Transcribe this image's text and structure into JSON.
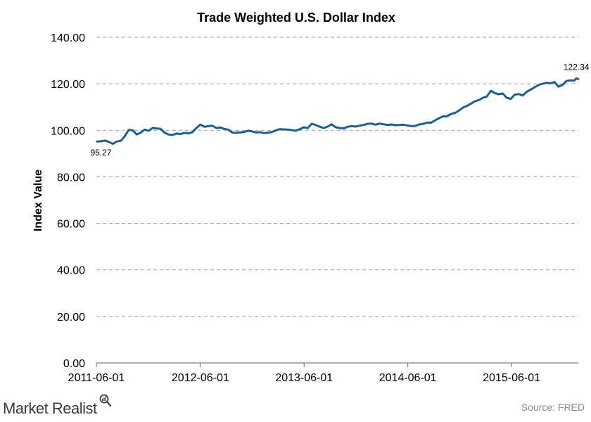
{
  "chart_data": {
    "type": "line",
    "title": "Trade Weighted  U.S. Dollar  Index",
    "ylabel": "Index Value",
    "xlabel": "",
    "ylim": [
      0,
      140
    ],
    "yticks": [
      "0.00",
      "20.00",
      "40.00",
      "60.00",
      "80.00",
      "100.00",
      "120.00",
      "140.00"
    ],
    "xticks": [
      "2011-06-01",
      "2012-06-01",
      "2013-06-01",
      "2014-06-01",
      "2015-06-01"
    ],
    "grid": "horizontal dashed",
    "color": "#1f5f8b",
    "x_start": "2011-06-01",
    "x_end": "2016-01-22",
    "annotations": [
      {
        "date": "2011-06-17",
        "value": 95.27,
        "label": "95.27",
        "position": "below"
      },
      {
        "date": "2016-01-15",
        "value": 122.34,
        "label": "122.34",
        "position": "above"
      }
    ],
    "series": [
      {
        "points": [
          [
            "2011-06-03",
            95.2
          ],
          [
            "2011-06-17",
            95.27
          ],
          [
            "2011-07-01",
            95.6
          ],
          [
            "2011-07-15",
            95.0
          ],
          [
            "2011-07-29",
            94.2
          ],
          [
            "2011-08-12",
            95.2
          ],
          [
            "2011-08-26",
            95.5
          ],
          [
            "2011-09-09",
            97.5
          ],
          [
            "2011-09-23",
            100.2
          ],
          [
            "2011-10-07",
            100.0
          ],
          [
            "2011-10-21",
            98.2
          ],
          [
            "2011-11-04",
            99.0
          ],
          [
            "2011-11-18",
            100.3
          ],
          [
            "2011-12-02",
            99.8
          ],
          [
            "2011-12-16",
            101.0
          ],
          [
            "2011-12-30",
            100.8
          ],
          [
            "2012-01-13",
            100.6
          ],
          [
            "2012-01-27",
            99.0
          ],
          [
            "2012-02-10",
            98.2
          ],
          [
            "2012-02-24",
            98.0
          ],
          [
            "2012-03-09",
            98.6
          ],
          [
            "2012-03-23",
            98.4
          ],
          [
            "2012-04-06",
            98.9
          ],
          [
            "2012-04-20",
            98.7
          ],
          [
            "2012-05-04",
            99.2
          ],
          [
            "2012-05-18",
            101.0
          ],
          [
            "2012-06-01",
            102.5
          ],
          [
            "2012-06-15",
            101.5
          ],
          [
            "2012-06-29",
            101.8
          ],
          [
            "2012-07-13",
            102.0
          ],
          [
            "2012-07-27",
            101.0
          ],
          [
            "2012-08-10",
            101.2
          ],
          [
            "2012-08-24",
            100.6
          ],
          [
            "2012-09-07",
            100.3
          ],
          [
            "2012-09-21",
            99.0
          ],
          [
            "2012-10-05",
            99.0
          ],
          [
            "2012-10-19",
            99.1
          ],
          [
            "2012-11-02",
            99.3
          ],
          [
            "2012-11-16",
            99.8
          ],
          [
            "2012-11-30",
            99.5
          ],
          [
            "2012-12-14",
            99.1
          ],
          [
            "2012-12-28",
            99.2
          ],
          [
            "2013-01-11",
            98.8
          ],
          [
            "2013-01-25",
            99.0
          ],
          [
            "2013-02-08",
            99.3
          ],
          [
            "2013-02-22",
            100.0
          ],
          [
            "2013-03-08",
            100.5
          ],
          [
            "2013-03-22",
            100.4
          ],
          [
            "2013-04-05",
            100.3
          ],
          [
            "2013-04-19",
            100.1
          ],
          [
            "2013-05-03",
            99.8
          ],
          [
            "2013-05-17",
            100.5
          ],
          [
            "2013-05-31",
            101.3
          ],
          [
            "2013-06-14",
            101.0
          ],
          [
            "2013-06-28",
            102.8
          ],
          [
            "2013-07-12",
            102.3
          ],
          [
            "2013-07-26",
            101.5
          ],
          [
            "2013-08-09",
            101.0
          ],
          [
            "2013-08-23",
            101.6
          ],
          [
            "2013-09-06",
            102.6
          ],
          [
            "2013-09-20",
            101.3
          ],
          [
            "2013-10-04",
            101.0
          ],
          [
            "2013-10-18",
            100.8
          ],
          [
            "2013-11-01",
            101.5
          ],
          [
            "2013-11-15",
            101.8
          ],
          [
            "2013-11-29",
            101.6
          ],
          [
            "2013-12-13",
            102.0
          ],
          [
            "2013-12-27",
            102.3
          ],
          [
            "2014-01-10",
            102.8
          ],
          [
            "2014-01-24",
            102.9
          ],
          [
            "2014-02-07",
            102.4
          ],
          [
            "2014-02-21",
            102.9
          ],
          [
            "2014-03-07",
            102.6
          ],
          [
            "2014-03-21",
            102.3
          ],
          [
            "2014-04-04",
            102.5
          ],
          [
            "2014-04-18",
            102.2
          ],
          [
            "2014-05-02",
            102.3
          ],
          [
            "2014-05-16",
            102.4
          ],
          [
            "2014-05-30",
            102.1
          ],
          [
            "2014-06-13",
            101.8
          ],
          [
            "2014-06-27",
            101.9
          ],
          [
            "2014-07-11",
            102.5
          ],
          [
            "2014-07-25",
            102.8
          ],
          [
            "2014-08-08",
            103.3
          ],
          [
            "2014-08-22",
            103.3
          ],
          [
            "2014-09-05",
            104.3
          ],
          [
            "2014-09-19",
            105.2
          ],
          [
            "2014-10-03",
            106.0
          ],
          [
            "2014-10-17",
            106.0
          ],
          [
            "2014-10-31",
            107.0
          ],
          [
            "2014-11-14",
            107.5
          ],
          [
            "2014-11-28",
            108.5
          ],
          [
            "2014-12-12",
            109.8
          ],
          [
            "2014-12-26",
            110.5
          ],
          [
            "2015-01-09",
            111.5
          ],
          [
            "2015-01-23",
            112.5
          ],
          [
            "2015-02-06",
            113.0
          ],
          [
            "2015-02-20",
            114.0
          ],
          [
            "2015-03-06",
            114.5
          ],
          [
            "2015-03-20",
            117.0
          ],
          [
            "2015-04-03",
            116.0
          ],
          [
            "2015-04-17",
            115.5
          ],
          [
            "2015-05-01",
            115.8
          ],
          [
            "2015-05-15",
            114.0
          ],
          [
            "2015-05-29",
            113.5
          ],
          [
            "2015-06-12",
            115.3
          ],
          [
            "2015-06-26",
            115.6
          ],
          [
            "2015-07-10",
            115.0
          ],
          [
            "2015-07-24",
            116.5
          ],
          [
            "2015-08-07",
            117.5
          ],
          [
            "2015-08-21",
            118.5
          ],
          [
            "2015-09-04",
            119.5
          ],
          [
            "2015-09-18",
            120.0
          ],
          [
            "2015-10-02",
            120.4
          ],
          [
            "2015-10-16",
            120.2
          ],
          [
            "2015-10-30",
            120.8
          ],
          [
            "2015-11-13",
            118.8
          ],
          [
            "2015-11-27",
            119.5
          ],
          [
            "2015-12-11",
            121.2
          ],
          [
            "2015-12-25",
            121.5
          ],
          [
            "2016-01-08",
            121.4
          ],
          [
            "2016-01-15",
            122.34
          ],
          [
            "2016-01-22",
            122.0
          ]
        ]
      }
    ]
  },
  "footer": {
    "brand": "Market Realist",
    "source": "Source:  FRED"
  }
}
